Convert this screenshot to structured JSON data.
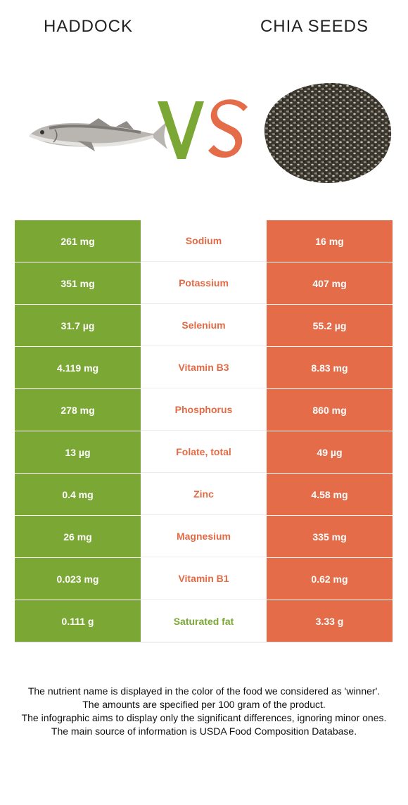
{
  "header": {
    "left_title": "HADDOCK",
    "right_title": "CHIA SEEDS",
    "vs_text": "VS"
  },
  "colors": {
    "left": "#7ba834",
    "right": "#e46c49"
  },
  "rows": [
    {
      "left": "261 mg",
      "nutrient": "Sodium",
      "right": "16 mg",
      "winner": "right"
    },
    {
      "left": "351 mg",
      "nutrient": "Potassium",
      "right": "407 mg",
      "winner": "right"
    },
    {
      "left": "31.7 µg",
      "nutrient": "Selenium",
      "right": "55.2 µg",
      "winner": "right"
    },
    {
      "left": "4.119 mg",
      "nutrient": "Vitamin B3",
      "right": "8.83 mg",
      "winner": "right"
    },
    {
      "left": "278 mg",
      "nutrient": "Phosphorus",
      "right": "860 mg",
      "winner": "right"
    },
    {
      "left": "13 µg",
      "nutrient": "Folate, total",
      "right": "49 µg",
      "winner": "right"
    },
    {
      "left": "0.4 mg",
      "nutrient": "Zinc",
      "right": "4.58 mg",
      "winner": "right"
    },
    {
      "left": "26 mg",
      "nutrient": "Magnesium",
      "right": "335 mg",
      "winner": "right"
    },
    {
      "left": "0.023 mg",
      "nutrient": "Vitamin B1",
      "right": "0.62 mg",
      "winner": "right"
    },
    {
      "left": "0.111 g",
      "nutrient": "Saturated fat",
      "right": "3.33 g",
      "winner": "left"
    }
  ],
  "footnote": [
    "The nutrient name is displayed in the color of the food we considered as 'winner'.",
    "The amounts are specified per 100 gram of the product.",
    "The infographic aims to display only the significant differences, ignoring minor ones.",
    "The main source of information is USDA Food Composition Database."
  ]
}
